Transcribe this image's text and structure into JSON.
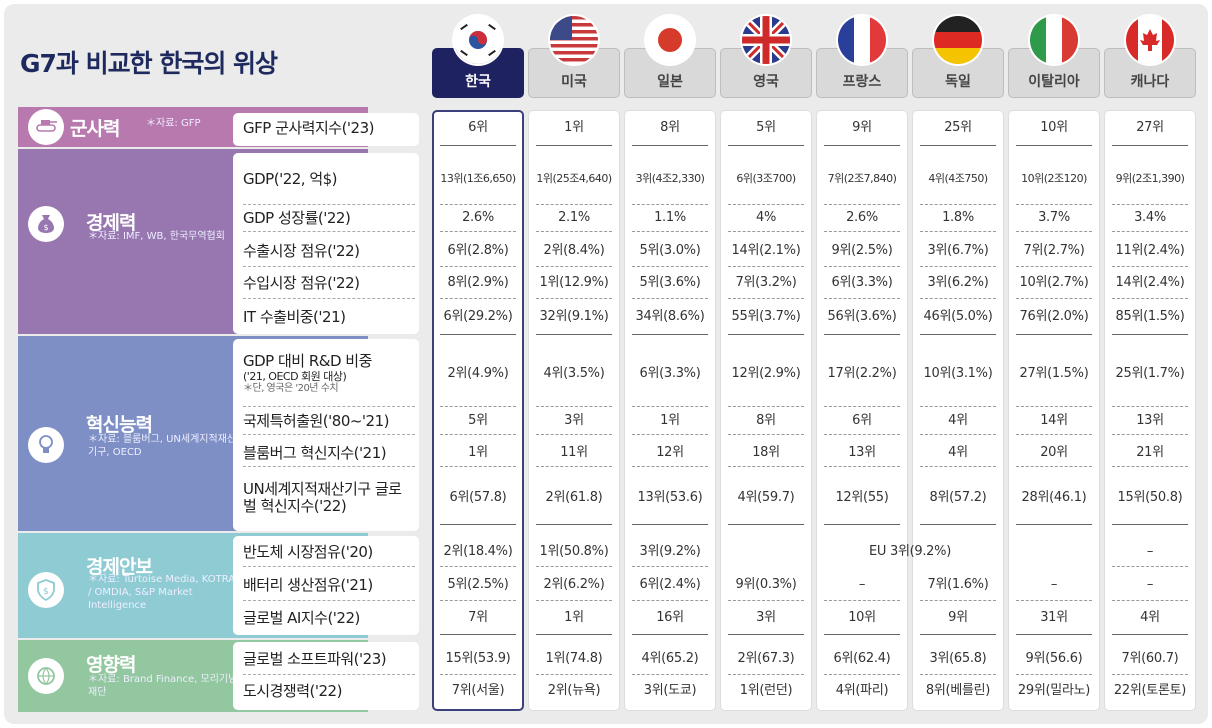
{
  "title": "G7과 비교한 한국의 위상",
  "countries": [
    {
      "name": "한국",
      "flag": "korea-flag"
    },
    {
      "name": "미국",
      "flag": "usa-flag"
    },
    {
      "name": "일본",
      "flag": "japan-flag"
    },
    {
      "name": "영국",
      "flag": "uk-flag"
    },
    {
      "name": "프랑스",
      "flag": "france-flag"
    },
    {
      "name": "독일",
      "flag": "germany-flag"
    },
    {
      "name": "이탈리아",
      "flag": "italy-flag"
    },
    {
      "name": "캐나다",
      "flag": "canada-flag"
    }
  ],
  "colors": {
    "highlight": "#1f2260",
    "military": "#b87aae",
    "economy": "#9877b0",
    "innovation": "#7e8fc5",
    "security": "#8ecbd3",
    "influence": "#93c7a0"
  },
  "sections": [
    {
      "category": "군사력",
      "source": "＊자료: GFP",
      "icon": "tank-icon",
      "metrics": [
        {
          "label": "GFP 군사력지수('23)",
          "values": [
            "6위",
            "1위",
            "8위",
            "5위",
            "9위",
            "25위",
            "10위",
            "27위"
          ]
        }
      ]
    },
    {
      "category": "경제력",
      "source": "＊자료: IMF, WB, 한국무역협회",
      "icon": "money-bag-icon",
      "metrics": [
        {
          "label": "GDP('22, 억$)",
          "values": [
            "13위(1조6,650)",
            "1위(25조4,640)",
            "3위(4조2,330)",
            "6위(3조700)",
            "7위(2조7,840)",
            "4위(4조750)",
            "10위(2조120)",
            "9위(2조1,390)"
          ]
        },
        {
          "label": "GDP 성장률('22)",
          "values": [
            "2.6%",
            "2.1%",
            "1.1%",
            "4%",
            "2.6%",
            "1.8%",
            "3.7%",
            "3.4%"
          ]
        },
        {
          "label": "수출시장 점유('22)",
          "values": [
            "6위(2.8%)",
            "2위(8.4%)",
            "5위(3.0%)",
            "14위(2.1%)",
            "9위(2.5%)",
            "3위(6.7%)",
            "7위(2.7%)",
            "11위(2.4%)"
          ]
        },
        {
          "label": "수입시장 점유('22)",
          "values": [
            "8위(2.9%)",
            "1위(12.9%)",
            "5위(3.6%)",
            "7위(3.2%)",
            "6위(3.3%)",
            "3위(6.2%)",
            "10위(2.7%)",
            "14위(2.4%)"
          ]
        },
        {
          "label": "IT 수출비중('21)",
          "values": [
            "6위(29.2%)",
            "32위(9.1%)",
            "34위(8.6%)",
            "55위(3.7%)",
            "56위(3.6%)",
            "46위(5.0%)",
            "76위(2.0%)",
            "85위(1.5%)"
          ]
        }
      ]
    },
    {
      "category": "혁신능력",
      "source": "＊자료: 블룸버그, UN세계지적재산기구, OECD",
      "icon": "lightbulb-icon",
      "metrics": [
        {
          "label": "GDP 대비 R&D 비중",
          "sublabel": "('21, OECD 회원 대상)",
          "note": "＊단, 영국은 '20년 수치",
          "values": [
            "2위(4.9%)",
            "4위(3.5%)",
            "6위(3.3%)",
            "12위(2.9%)",
            "17위(2.2%)",
            "10위(3.1%)",
            "27위(1.5%)",
            "25위(1.7%)"
          ]
        },
        {
          "label": "국제특허출원('80~'21)",
          "values": [
            "5위",
            "3위",
            "1위",
            "8위",
            "6위",
            "4위",
            "14위",
            "13위"
          ]
        },
        {
          "label": "블룸버그 혁신지수('21)",
          "values": [
            "1위",
            "11위",
            "12위",
            "18위",
            "13위",
            "4위",
            "20위",
            "21위"
          ]
        },
        {
          "label": "UN세계지적재산기구 글로벌 혁신지수('22)",
          "values": [
            "6위(57.8)",
            "2위(61.8)",
            "13위(53.6)",
            "4위(59.7)",
            "12위(55)",
            "8위(57.2)",
            "28위(46.1)",
            "15위(50.8)"
          ]
        }
      ]
    },
    {
      "category": "경제안보",
      "source": "＊자료: Turtoise Media, KOTRA / OMDIA, S&P Market Intelligence",
      "icon": "shield-dollar-icon",
      "metrics": [
        {
          "label": "반도체 시장점유('20)",
          "values": [
            "2위(18.4%)",
            "1위(50.8%)",
            "3위(9.2%)",
            "EU 3위(9.2%)",
            "–"
          ]
        },
        {
          "label": "배터리 생산점유('21)",
          "values": [
            "5위(2.5%)",
            "2위(6.2%)",
            "6위(2.4%)",
            "9위(0.3%)",
            "–",
            "7위(1.6%)",
            "–",
            "–"
          ]
        },
        {
          "label": "글로벌 AI지수('22)",
          "values": [
            "7위",
            "1위",
            "16위",
            "3위",
            "10위",
            "9위",
            "31위",
            "4위"
          ]
        }
      ]
    },
    {
      "category": "영향력",
      "source": "＊자료: Brand Finance, 모리기념재단",
      "icon": "globe-icon",
      "metrics": [
        {
          "label": "글로벌 소프트파워('23)",
          "values": [
            "15위(53.9)",
            "1위(74.8)",
            "4위(65.2)",
            "2위(67.3)",
            "6위(62.4)",
            "3위(65.8)",
            "9위(56.6)",
            "7위(60.7)"
          ]
        },
        {
          "label": "도시경쟁력('22)",
          "values": [
            "7위(서울)",
            "2위(뉴욕)",
            "3위(도쿄)",
            "1위(런던)",
            "4위(파리)",
            "8위(베를린)",
            "29위(밀라노)",
            "22위(토론토)"
          ]
        }
      ]
    }
  ]
}
